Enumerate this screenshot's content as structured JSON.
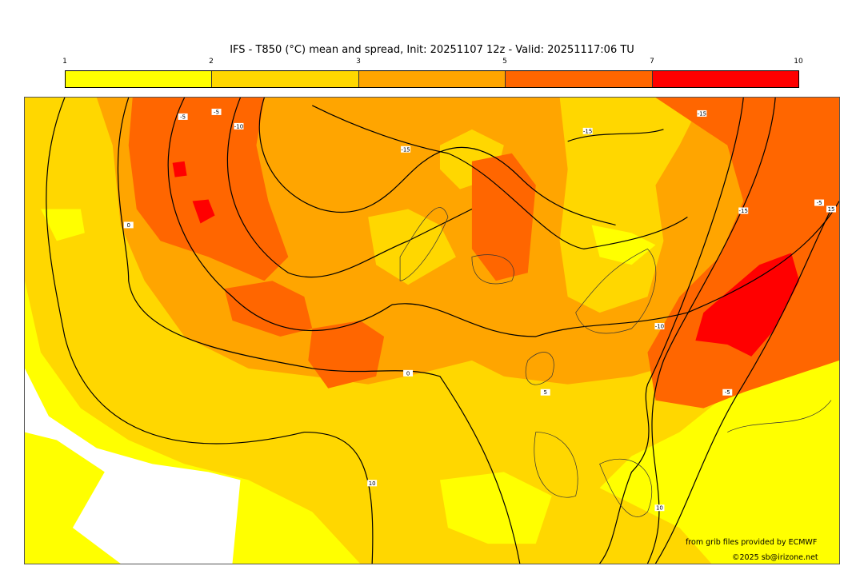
{
  "title": "IFS - T850 (°C) mean and spread, Init: 20251107 12z - Valid: 20251117:06 TU",
  "colorbar": {
    "ticks": [
      "1",
      "2",
      "3",
      "5",
      "7",
      "10"
    ],
    "colors": [
      "#ffff00",
      "#ffd700",
      "#ffa500",
      "#ff6600",
      "#ff0000"
    ]
  },
  "contour_labels": [
    "-5",
    "-5",
    "-10",
    "-15",
    "-15",
    "-15",
    "-15",
    "-10",
    "-5",
    "0",
    "-5",
    "0",
    "5",
    "10",
    "10",
    "15"
  ],
  "credits": {
    "source": "from grib files provided by ECMWF",
    "copyright": "©2025 sb@irizone.net"
  }
}
